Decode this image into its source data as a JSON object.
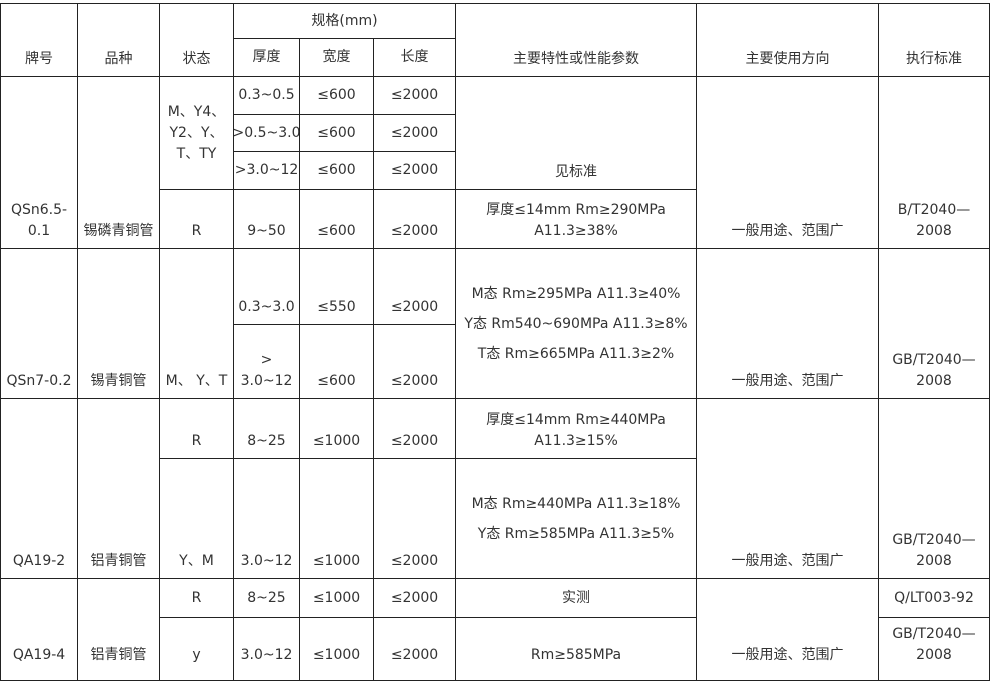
{
  "header": {
    "brand": "牌号",
    "variety": "品种",
    "state": "状态",
    "spec": "规格(mm)",
    "thickness": "厚度",
    "width": "宽度",
    "length": "长度",
    "properties": "主要特性或性能参数",
    "usage": "主要使用方向",
    "standard": "执行标准"
  },
  "groups": [
    {
      "brand": "QSn6.5-\n0.1",
      "variety": "锡磷青铜管",
      "state_a": "M、Y4、\nY2、Y、\nT、TY",
      "state_b": "R",
      "rows": [
        {
          "thickness": "0.3~0.5",
          "width": "≤600",
          "length": "≤2000"
        },
        {
          "thickness": ">0.5~3.0",
          "width": "≤600",
          "length": "≤2000"
        },
        {
          "thickness": ">3.0~12",
          "width": "≤600",
          "length": "≤2000"
        },
        {
          "thickness": "9~50",
          "width": "≤600",
          "length": "≤2000"
        }
      ],
      "properties_a": "见标准",
      "properties_b": "厚度≤14mm Rm≥290MPa\nA11.3≥38%",
      "usage": "一般用途、范围广",
      "standard": "B/T2040—\n2008"
    },
    {
      "brand": "QSn7-0.2",
      "variety": "锡青铜管",
      "state": "M、 Y、T",
      "rows": [
        {
          "thickness": "0.3~3.0",
          "width": "≤550",
          "length": "≤2000"
        },
        {
          "thickness": "> 3.0~12",
          "width": "≤600",
          "length": "≤2000"
        }
      ],
      "properties": "M态 Rm≥295MPa A11.3≥40%\nY态 Rm540~690MPa A11.3≥8%\nT态 Rm≥665MPa A11.3≥2%",
      "usage": "一般用途、范围广",
      "standard": "GB/T2040—\n2008"
    },
    {
      "brand": "QA19-2",
      "variety": "铝青铜管",
      "rows": [
        {
          "state": "R",
          "thickness": "8~25",
          "width": "≤1000",
          "length": "≤2000",
          "properties": "厚度≤14mm Rm≥440MPa\nA11.3≥15%"
        },
        {
          "state": "Y、M",
          "thickness": "3.0~12",
          "width": "≤1000",
          "length": "≤2000",
          "properties": "M态 Rm≥440MPa A11.3≥18%\nY态 Rm≥585MPa A11.3≥5%"
        }
      ],
      "usage": "一般用途、范围广",
      "standard": "GB/T2040—\n2008"
    },
    {
      "brand": "QA19-4",
      "variety": "铝青铜管",
      "rows": [
        {
          "state": "R",
          "thickness": "8~25",
          "width": "≤1000",
          "length": "≤2000",
          "properties": "实测",
          "standard": "Q/LT003-92"
        },
        {
          "state": "y",
          "thickness": "3.0~12",
          "width": "≤1000",
          "length": "≤2000",
          "properties": "Rm≥585MPa",
          "standard": "GB/T2040—\n2008"
        }
      ],
      "usage": "一般用途、范围广"
    }
  ]
}
